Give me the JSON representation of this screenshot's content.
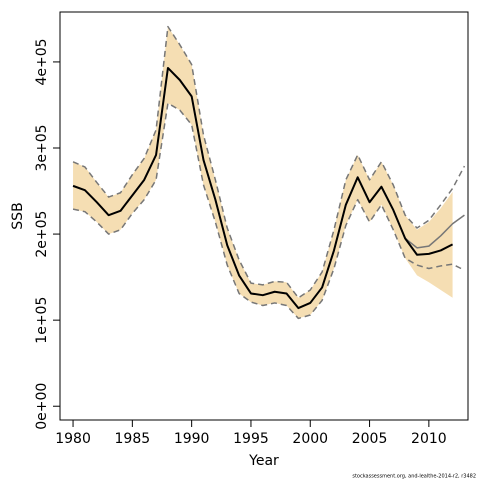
{
  "chart_data": {
    "type": "line",
    "xlabel": "Year",
    "ylabel": "SSB",
    "footnote": "stockassessment.org, and-lealthe-2014-r2, r3482",
    "xlim": [
      1978.9,
      2013.3
    ],
    "ylim": [
      -16000,
      458000
    ],
    "xticks": [
      1980,
      1985,
      1990,
      1995,
      2000,
      2005,
      2010
    ],
    "yticks": [
      {
        "value": 0,
        "label": "0e+00"
      },
      {
        "value": 100000,
        "label": "1e+05"
      },
      {
        "value": 200000,
        "label": "2e+05"
      },
      {
        "value": 300000,
        "label": "3e+05"
      },
      {
        "value": 400000,
        "label": "4e+05"
      }
    ],
    "band": {
      "color": "#f5deb3",
      "x": [
        1980,
        1981,
        1982,
        1983,
        1984,
        1985,
        1986,
        1987,
        1988,
        1989,
        1990,
        1991,
        1992,
        1993,
        1994,
        1995,
        1996,
        1997,
        1998,
        1999,
        2000,
        2001,
        2002,
        2003,
        2004,
        2005,
        2006,
        2007,
        2008,
        2009,
        2010,
        2011,
        2012
      ],
      "upper": [
        284000,
        278000,
        260000,
        243000,
        248000,
        269000,
        288000,
        321000,
        441000,
        420000,
        397000,
        315000,
        263000,
        207000,
        170000,
        143000,
        141000,
        145000,
        144000,
        126000,
        135000,
        156000,
        205000,
        263000,
        292000,
        263000,
        284000,
        257000,
        222000,
        205000,
        214000,
        230000,
        249000
      ],
      "lower": [
        229000,
        226000,
        214000,
        200000,
        205000,
        224000,
        240000,
        263000,
        352000,
        344000,
        327000,
        257000,
        214000,
        164000,
        131000,
        121000,
        117000,
        120000,
        117000,
        102000,
        106000,
        123000,
        160000,
        210000,
        240000,
        214000,
        234000,
        205000,
        172000,
        152000,
        144000,
        135000,
        126000
      ]
    },
    "series": [
      {
        "color": "#777777",
        "dashed": true,
        "width": 1.5,
        "x": [
          1980,
          1981,
          1982,
          1983,
          1984,
          1985,
          1986,
          1987,
          1988,
          1989,
          1990,
          1991,
          1992,
          1993,
          1994,
          1995,
          1996,
          1997,
          1998,
          1999,
          2000,
          2001,
          2002,
          2003,
          2004,
          2005,
          2006,
          2007,
          2008,
          2009,
          2010,
          2011,
          2012,
          2013
        ],
        "values": [
          284000,
          278000,
          260000,
          243000,
          248000,
          269000,
          288000,
          321000,
          441000,
          420000,
          397000,
          315000,
          263000,
          207000,
          170000,
          143000,
          141000,
          145000,
          144000,
          126000,
          135000,
          156000,
          205000,
          263000,
          292000,
          263000,
          284000,
          257000,
          222000,
          207000,
          216000,
          234000,
          253000,
          279000
        ]
      },
      {
        "color": "#777777",
        "dashed": true,
        "width": 1.5,
        "x": [
          1980,
          1981,
          1982,
          1983,
          1984,
          1985,
          1986,
          1987,
          1988,
          1989,
          1990,
          1991,
          1992,
          1993,
          1994,
          1995,
          1996,
          1997,
          1998,
          1999,
          2000,
          2001,
          2002,
          2003,
          2004,
          2005,
          2006,
          2007,
          2008,
          2009,
          2010,
          2011,
          2012,
          2013
        ],
        "values": [
          229000,
          226000,
          214000,
          200000,
          205000,
          224000,
          240000,
          263000,
          352000,
          344000,
          327000,
          257000,
          214000,
          164000,
          131000,
          121000,
          117000,
          120000,
          117000,
          102000,
          106000,
          123000,
          160000,
          210000,
          240000,
          214000,
          234000,
          205000,
          172000,
          164000,
          160000,
          163000,
          165000,
          158000
        ]
      },
      {
        "color": "#777777",
        "dashed": false,
        "width": 1.5,
        "x": [
          2008,
          2009,
          2010,
          2011,
          2012,
          2013
        ],
        "values": [
          195000,
          184000,
          186000,
          198000,
          212000,
          222000
        ]
      },
      {
        "color": "#000000",
        "dashed": false,
        "width": 2,
        "x": [
          1980,
          1981,
          1982,
          1983,
          1984,
          1985,
          1986,
          1987,
          1988,
          1989,
          1990,
          1991,
          1992,
          1993,
          1994,
          1995,
          1996,
          1997,
          1998,
          1999,
          2000,
          2001,
          2002,
          2003,
          2004,
          2005,
          2006,
          2007,
          2008,
          2009,
          2010,
          2011,
          2012
        ],
        "values": [
          256000,
          251000,
          237000,
          222000,
          227000,
          245000,
          263000,
          292000,
          393000,
          379000,
          360000,
          286000,
          240000,
          187000,
          152000,
          131000,
          129000,
          133000,
          131000,
          114000,
          120000,
          138000,
          181000,
          234000,
          266000,
          237000,
          255000,
          228000,
          195000,
          176000,
          177000,
          181000,
          188000
        ]
      }
    ]
  }
}
